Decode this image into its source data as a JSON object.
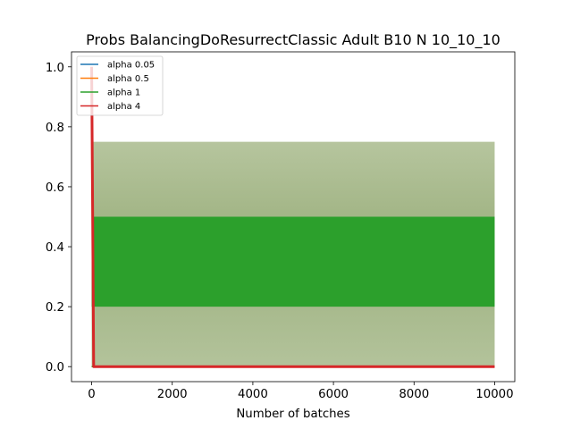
{
  "chart_data": {
    "type": "line",
    "title": "Probs BalancingDoResurrectClassic Adult B10 N 10_10_10",
    "xlabel": "Number of batches",
    "ylabel": "",
    "xlim": [
      -500,
      10500
    ],
    "ylim": [
      -0.05,
      1.05
    ],
    "xticks": [
      0,
      2000,
      4000,
      6000,
      8000,
      10000
    ],
    "yticks": [
      0.0,
      0.2,
      0.4,
      0.6,
      0.8,
      1.0
    ],
    "xtick_labels": [
      "0",
      "2000",
      "4000",
      "6000",
      "8000",
      "10000"
    ],
    "ytick_labels": [
      "0.0",
      "0.2",
      "0.4",
      "0.6",
      "0.8",
      "1.0"
    ],
    "legend_position": "top-left",
    "grid": false,
    "series": [
      {
        "name": "alpha 0.05",
        "color": "#1f77b4",
        "x": [
          0,
          10000
        ],
        "y": [
          0.0,
          0.0
        ]
      },
      {
        "name": "alpha 0.5",
        "color": "#ff7f0e",
        "x": [
          0,
          10000
        ],
        "y": [
          0.0,
          0.0
        ]
      },
      {
        "name": "alpha 1",
        "color": "#2ca02c",
        "x": [
          0,
          10000
        ],
        "y": [
          0.0,
          0.0
        ],
        "band_low": 0.2,
        "band_high": 0.5
      },
      {
        "name": "alpha 4",
        "color": "#d62728",
        "x": [
          0,
          50,
          10000
        ],
        "y": [
          1.0,
          0.0,
          0.0
        ]
      }
    ],
    "shaded_band": {
      "x": [
        0,
        10000
      ],
      "low": 0.0,
      "high": 0.75,
      "color": "#8faa72"
    }
  }
}
